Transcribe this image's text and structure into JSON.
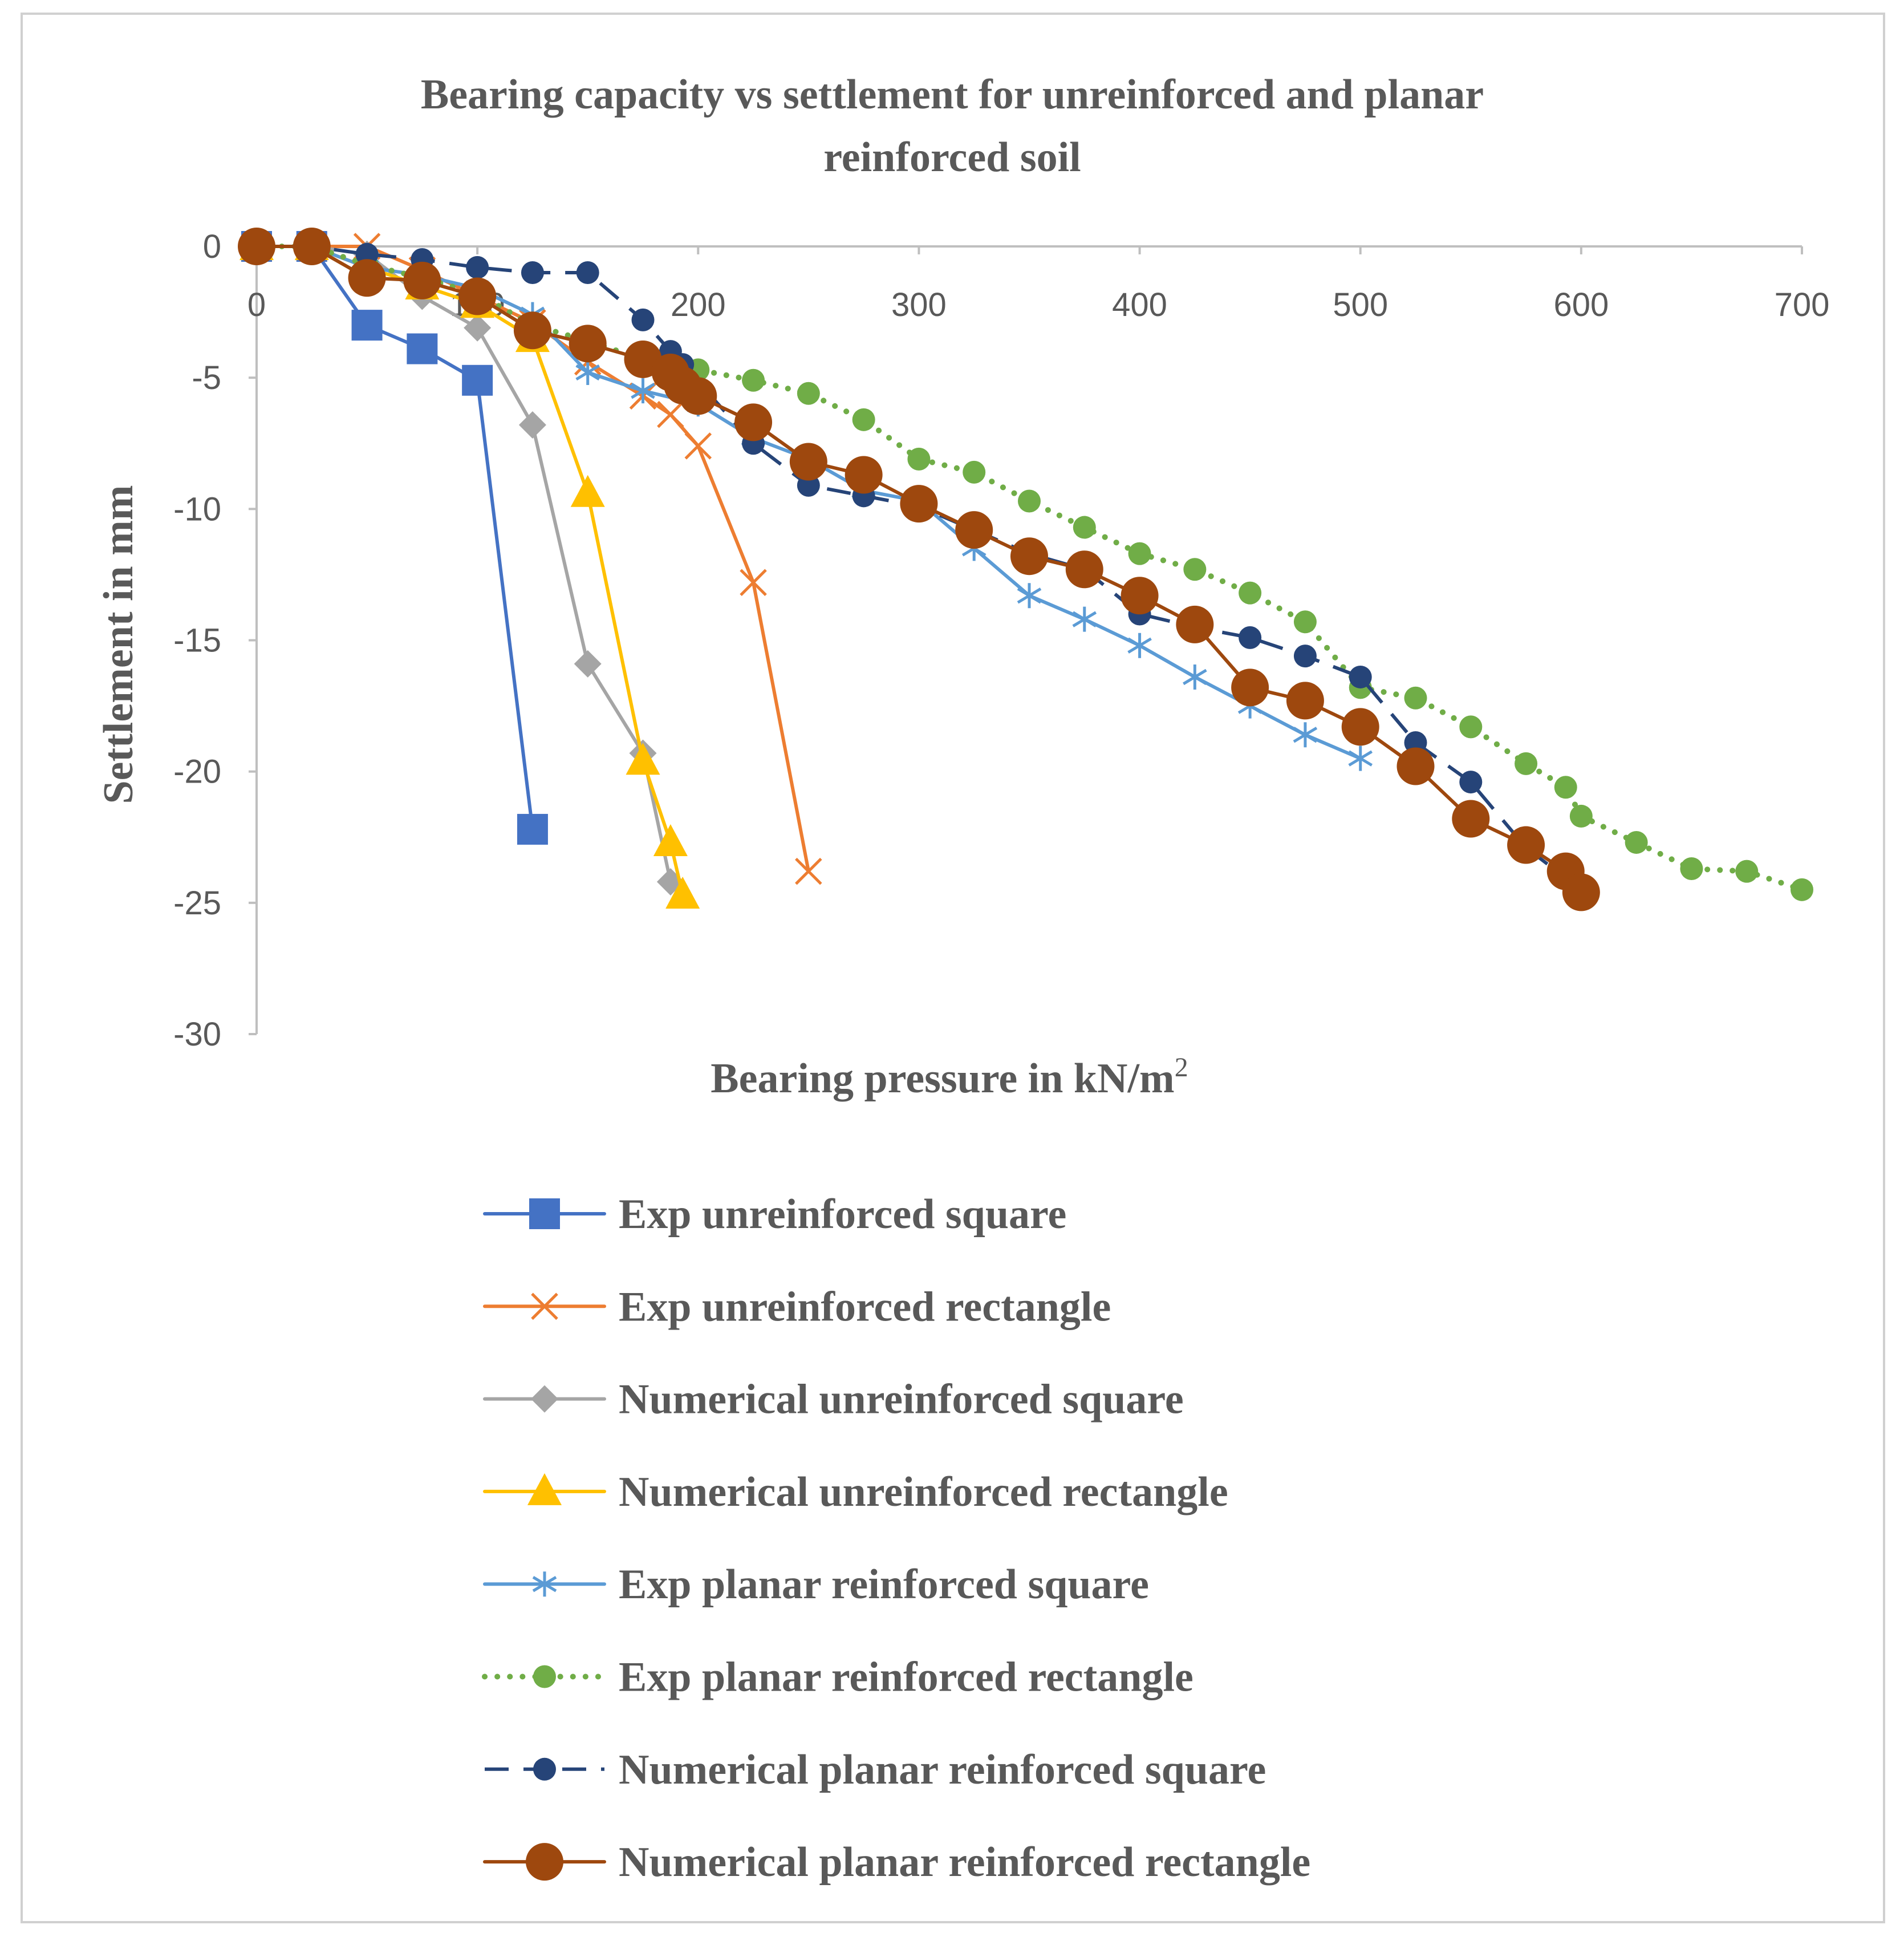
{
  "chart_data": {
    "type": "line",
    "title_lines": [
      "Bearing capacity vs settlement for unreinforced and planar",
      "reinforced soil"
    ],
    "xlabel": "Bearing pressure in kN/m",
    "xlabel_sup": "2",
    "ylabel": "Settlement in mm",
    "xlim": [
      0,
      700
    ],
    "ylim": [
      -30,
      0
    ],
    "xticks": [
      0,
      100,
      200,
      300,
      400,
      500,
      600,
      700
    ],
    "yticks": [
      0,
      -5,
      -10,
      -15,
      -20,
      -25,
      -30
    ],
    "x_tick_labels": [
      "0",
      "100",
      "200",
      "300",
      "400",
      "500",
      "600",
      "700"
    ],
    "y_tick_labels": [
      "0",
      "-5",
      "-10",
      "-15",
      "-20",
      "-25",
      "-30"
    ],
    "legend_position": "bottom",
    "series": [
      {
        "name": "Exp unreinforced square",
        "color": "#4472C4",
        "marker": "square",
        "line": "solid",
        "x": [
          0,
          25,
          50,
          75,
          100,
          125
        ],
        "y": [
          0,
          0,
          -3,
          -3.9,
          -5.1,
          -22.2
        ]
      },
      {
        "name": "Exp unreinforced rectangle",
        "color": "#ED7D31",
        "marker": "x",
        "line": "solid",
        "x": [
          0,
          25,
          50,
          75,
          100,
          125,
          150,
          175,
          187.5,
          200,
          225,
          250
        ],
        "y": [
          0,
          0,
          0,
          -0.9,
          -1.9,
          -2.9,
          -4.4,
          -5.7,
          -6.4,
          -7.6,
          -12.8,
          -23.8
        ]
      },
      {
        "name": "Numerical unreinforced square",
        "color": "#A5A5A5",
        "marker": "diamond",
        "line": "solid",
        "x": [
          0,
          25,
          50,
          75,
          100,
          125,
          150,
          175,
          187.5
        ],
        "y": [
          0,
          0,
          -0.3,
          -1.9,
          -3.1,
          -6.8,
          -15.9,
          -19.3,
          -24.2
        ]
      },
      {
        "name": "Numerical unreinforced rectangle",
        "color": "#FFC000",
        "marker": "triangle",
        "line": "solid",
        "x": [
          0,
          25,
          50,
          75,
          100,
          125,
          150,
          175,
          187.5,
          193
        ],
        "y": [
          0,
          0,
          -0.8,
          -1.5,
          -2.2,
          -3.5,
          -9.4,
          -19.6,
          -22.7,
          -24.7
        ]
      },
      {
        "name": "Exp planar reinforced square",
        "color": "#5B9BD5",
        "marker": "asterisk",
        "line": "solid",
        "x": [
          0,
          25,
          50,
          75,
          100,
          125,
          150,
          175,
          200,
          225,
          250,
          275,
          300,
          325,
          350,
          375,
          400,
          425,
          450,
          475,
          500
        ],
        "y": [
          0,
          0,
          -0.8,
          -1.1,
          -1.6,
          -2.6,
          -4.8,
          -5.5,
          -6,
          -7.3,
          -8.1,
          -9.3,
          -9.7,
          -11.5,
          -13.3,
          -14.2,
          -15.2,
          -16.4,
          -17.5,
          -18.6,
          -19.5
        ]
      },
      {
        "name": "Exp planar reinforced rectangle",
        "color": "#70AD47",
        "marker": "circle-small",
        "line": "dotted",
        "x": [
          0,
          25,
          50,
          75,
          100,
          125,
          150,
          175,
          200,
          225,
          250,
          275,
          300,
          325,
          350,
          375,
          400,
          425,
          450,
          475,
          500,
          525,
          550,
          575,
          593,
          600,
          625,
          650,
          675,
          700
        ],
        "y": [
          0,
          0,
          -0.7,
          -1.2,
          -1.8,
          -3,
          -3.6,
          -4.3,
          -4.7,
          -5.1,
          -5.6,
          -6.6,
          -8.1,
          -8.6,
          -9.7,
          -10.7,
          -11.7,
          -12.3,
          -13.2,
          -14.3,
          -16.8,
          -17.2,
          -18.3,
          -19.7,
          -20.6,
          -21.7,
          -22.7,
          -23.7,
          -23.8,
          -24.5
        ]
      },
      {
        "name": "Numerical planar reinforced square",
        "color": "#264478",
        "marker": "circle-small",
        "line": "dashed",
        "x": [
          0,
          25,
          50,
          75,
          100,
          125,
          150,
          175,
          187.5,
          193,
          225,
          250,
          275,
          300,
          325,
          350,
          375,
          400,
          425,
          450,
          475,
          500,
          525,
          550,
          575,
          600
        ],
        "y": [
          0,
          0,
          -0.3,
          -0.5,
          -0.8,
          -1,
          -1,
          -2.8,
          -4,
          -4.5,
          -7.5,
          -9.1,
          -9.5,
          -9.9,
          -10.8,
          -11.7,
          -12.3,
          -14,
          -14.5,
          -14.9,
          -15.6,
          -16.4,
          -18.9,
          -20.4,
          -22.9,
          -24.5
        ]
      },
      {
        "name": "Numerical planar reinforced rectangle",
        "color": "#9E480E",
        "marker": "circle-large",
        "line": "solid",
        "x": [
          0,
          25,
          50,
          75,
          100,
          125,
          150,
          175,
          187.5,
          193,
          200,
          225,
          250,
          275,
          300,
          325,
          350,
          375,
          400,
          425,
          450,
          475,
          500,
          525,
          550,
          575,
          593,
          600
        ],
        "y": [
          0,
          0,
          -1.2,
          -1.3,
          -1.9,
          -3.2,
          -3.7,
          -4.3,
          -4.8,
          -5.3,
          -5.7,
          -6.7,
          -8.2,
          -8.7,
          -9.8,
          -10.8,
          -11.8,
          -12.3,
          -13.3,
          -14.4,
          -16.8,
          -17.3,
          -18.3,
          -19.8,
          -21.8,
          -22.8,
          -23.8,
          -24.6
        ]
      }
    ]
  }
}
